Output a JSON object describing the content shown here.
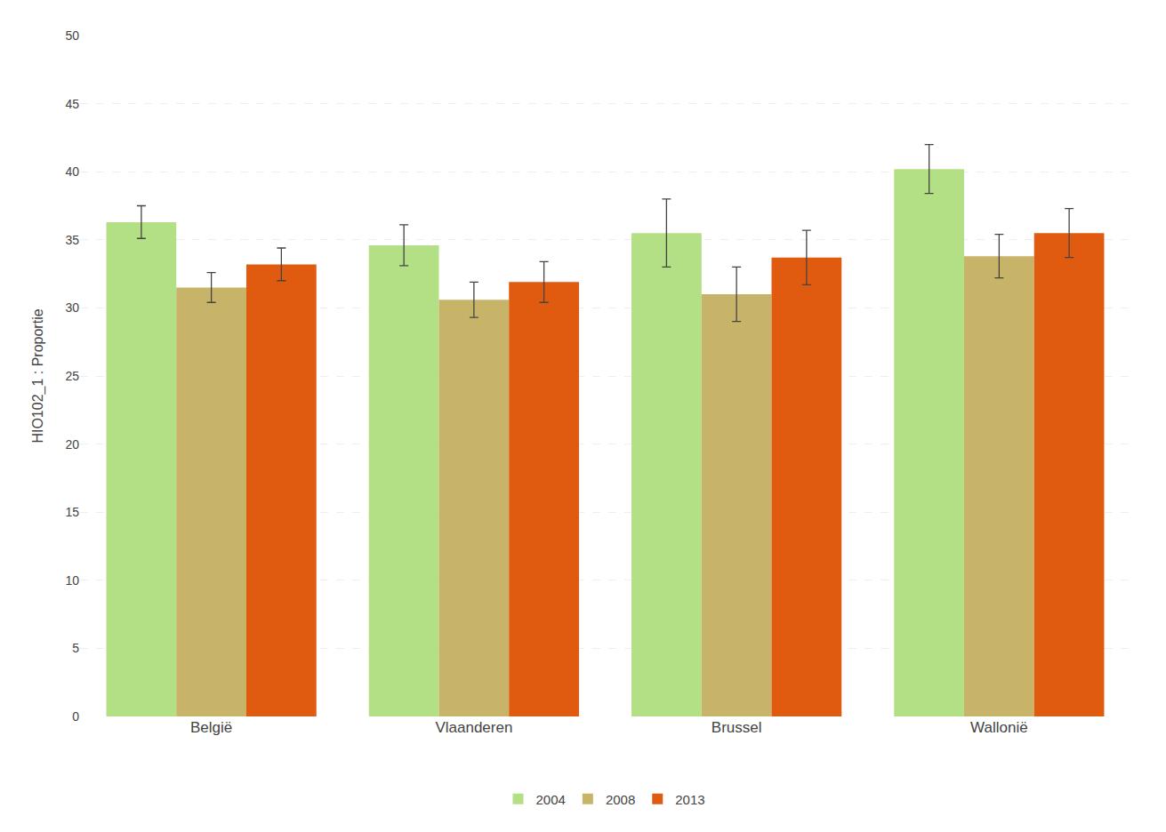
{
  "chart_data": {
    "type": "bar",
    "categories": [
      "België",
      "Vlaanderen",
      "Brussel",
      "Wallonië"
    ],
    "series": [
      {
        "name": "2004",
        "color": "#b3e085",
        "values": [
          36.3,
          34.6,
          35.5,
          40.2
        ],
        "errors": [
          1.2,
          1.5,
          2.5,
          1.8
        ]
      },
      {
        "name": "2008",
        "color": "#c8b468",
        "values": [
          31.5,
          30.6,
          31.0,
          33.8
        ],
        "errors": [
          1.1,
          1.3,
          2.0,
          1.6
        ]
      },
      {
        "name": "2013",
        "color": "#e05a10",
        "values": [
          33.2,
          31.9,
          33.7,
          35.5
        ],
        "errors": [
          1.2,
          1.5,
          2.0,
          1.8
        ]
      }
    ],
    "ylabel": "HIO102_1 : Proportie",
    "ylim": [
      0,
      50
    ],
    "yticks": [
      0,
      5,
      10,
      15,
      20,
      25,
      30,
      35,
      40,
      45,
      50
    ],
    "grid": true,
    "legend": "bottom"
  }
}
